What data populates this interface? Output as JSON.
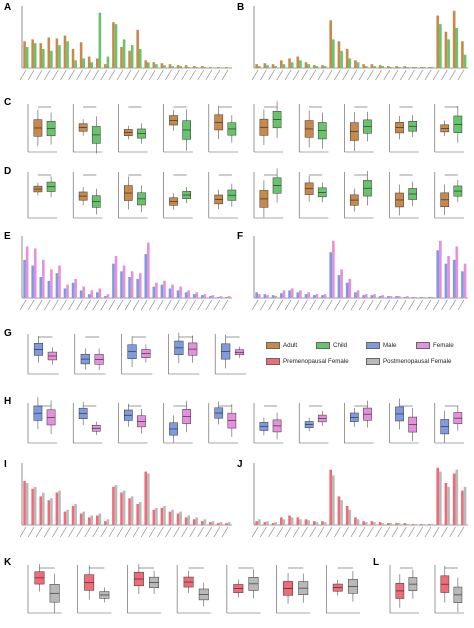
{
  "panels": [
    "A",
    "B",
    "C",
    "D",
    "E",
    "F",
    "G",
    "H",
    "I",
    "J",
    "K",
    "L"
  ],
  "legend": [
    {
      "label": "Adult",
      "color": "#c8894a"
    },
    {
      "label": "Child",
      "color": "#67c46a"
    },
    {
      "label": "Male",
      "color": "#7f9be0"
    },
    {
      "label": "Female",
      "color": "#e58fdd"
    },
    {
      "label": "Premenopausal Female",
      "color": "#f06b78"
    },
    {
      "label": "Postmenopausal Female",
      "color": "#b9b9b9"
    }
  ],
  "chart_data": [
    {
      "panel": "A",
      "type": "bar",
      "series": [
        {
          "name": "Adult",
          "color": "#c8894a",
          "values": [
            28,
            30,
            26,
            32,
            31,
            34,
            20,
            27,
            12,
            10,
            4,
            48,
            22,
            18,
            40,
            8,
            6,
            5,
            4,
            3,
            3,
            2,
            2,
            1,
            1,
            1
          ]
        },
        {
          "name": "Child",
          "color": "#67c46a",
          "values": [
            22,
            26,
            20,
            18,
            24,
            28,
            8,
            10,
            6,
            58,
            12,
            46,
            30,
            24,
            20,
            6,
            4,
            3,
            2,
            2,
            1,
            1,
            1,
            0,
            0,
            0
          ]
        }
      ]
    },
    {
      "panel": "B",
      "type": "bar",
      "series": [
        {
          "name": "Adult",
          "color": "#c8894a",
          "values": [
            4,
            5,
            4,
            8,
            10,
            12,
            6,
            3,
            3,
            50,
            28,
            20,
            8,
            4,
            4,
            3,
            2,
            2,
            2,
            1,
            1,
            1,
            55,
            38,
            60,
            28
          ]
        },
        {
          "name": "Child",
          "color": "#67c46a",
          "values": [
            2,
            3,
            2,
            4,
            6,
            8,
            4,
            2,
            2,
            30,
            18,
            10,
            6,
            2,
            2,
            2,
            1,
            1,
            1,
            1,
            1,
            1,
            46,
            30,
            42,
            14
          ]
        }
      ]
    },
    {
      "panel": "C",
      "type": "box",
      "groups": [
        "Adult",
        "Child"
      ],
      "count": 10
    },
    {
      "panel": "D",
      "type": "box",
      "groups": [
        "Adult",
        "Child"
      ],
      "count": 10
    },
    {
      "panel": "E",
      "type": "bar",
      "series": [
        {
          "name": "Male",
          "color": "#7f9be0",
          "values": [
            40,
            34,
            22,
            18,
            26,
            10,
            16,
            8,
            4,
            6,
            2,
            36,
            28,
            22,
            20,
            46,
            12,
            14,
            10,
            8,
            6,
            4,
            3,
            2,
            1,
            1
          ]
        },
        {
          "name": "Female",
          "color": "#e58fdd",
          "values": [
            54,
            52,
            40,
            30,
            34,
            14,
            20,
            12,
            8,
            10,
            4,
            44,
            34,
            28,
            26,
            58,
            16,
            18,
            14,
            12,
            8,
            6,
            4,
            3,
            2,
            2
          ]
        }
      ]
    },
    {
      "panel": "F",
      "type": "bar",
      "series": [
        {
          "name": "Male",
          "color": "#7f9be0",
          "values": [
            6,
            4,
            3,
            5,
            8,
            6,
            4,
            3,
            3,
            48,
            24,
            16,
            6,
            3,
            3,
            2,
            2,
            2,
            1,
            1,
            1,
            1,
            50,
            36,
            40,
            28
          ]
        },
        {
          "name": "Female",
          "color": "#e58fdd",
          "values": [
            4,
            3,
            2,
            8,
            10,
            8,
            6,
            4,
            4,
            60,
            30,
            20,
            8,
            4,
            4,
            3,
            2,
            2,
            2,
            1,
            1,
            1,
            60,
            44,
            54,
            36
          ]
        }
      ]
    },
    {
      "panel": "G",
      "type": "box",
      "groups": [
        "Male",
        "Female"
      ],
      "count": 5
    },
    {
      "panel": "H",
      "type": "box",
      "groups": [
        "Male",
        "Female"
      ],
      "count": 10
    },
    {
      "panel": "I",
      "type": "bar",
      "series": [
        {
          "name": "Premenopausal Female",
          "color": "#f06b78",
          "values": [
            46,
            38,
            30,
            26,
            34,
            14,
            20,
            12,
            8,
            10,
            4,
            40,
            34,
            28,
            22,
            56,
            16,
            18,
            14,
            12,
            8,
            6,
            4,
            3,
            2,
            2
          ]
        },
        {
          "name": "Postmenopausal Female",
          "color": "#b9b9b9",
          "values": [
            44,
            40,
            34,
            28,
            36,
            16,
            22,
            14,
            10,
            12,
            6,
            42,
            36,
            30,
            24,
            54,
            18,
            20,
            16,
            14,
            10,
            8,
            6,
            4,
            3,
            3
          ]
        }
      ]
    },
    {
      "panel": "J",
      "type": "bar",
      "series": [
        {
          "name": "Premenopausal Female",
          "color": "#f06b78",
          "values": [
            4,
            3,
            2,
            8,
            10,
            8,
            6,
            4,
            4,
            58,
            30,
            20,
            8,
            4,
            4,
            3,
            2,
            2,
            2,
            1,
            1,
            1,
            60,
            44,
            54,
            36
          ]
        },
        {
          "name": "Postmenopausal Female",
          "color": "#b9b9b9",
          "values": [
            6,
            4,
            3,
            6,
            8,
            6,
            5,
            3,
            3,
            52,
            26,
            16,
            6,
            3,
            3,
            2,
            2,
            2,
            1,
            1,
            1,
            1,
            56,
            40,
            58,
            40
          ]
        }
      ]
    },
    {
      "panel": "K",
      "type": "box",
      "groups": [
        "Premenopausal Female",
        "Postmenopausal Female"
      ],
      "count": 7
    },
    {
      "panel": "L",
      "type": "box",
      "groups": [
        "Premenopausal Female",
        "Postmenopausal Female"
      ],
      "count": 2
    }
  ]
}
